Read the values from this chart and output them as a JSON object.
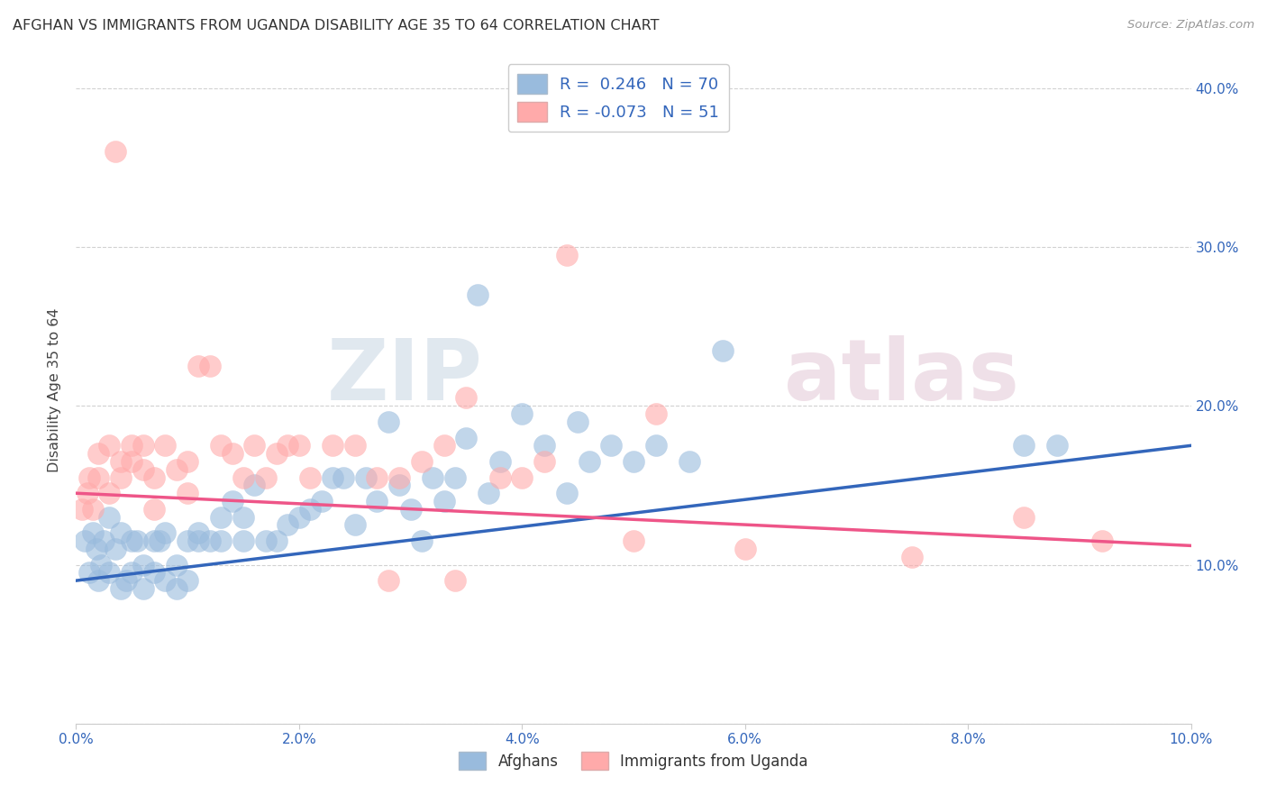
{
  "title": "AFGHAN VS IMMIGRANTS FROM UGANDA DISABILITY AGE 35 TO 64 CORRELATION CHART",
  "source": "Source: ZipAtlas.com",
  "ylabel": "Disability Age 35 to 64",
  "xlim": [
    0.0,
    0.1
  ],
  "ylim": [
    0.0,
    0.42
  ],
  "xticks": [
    0.0,
    0.02,
    0.04,
    0.06,
    0.08,
    0.1
  ],
  "yticks": [
    0.0,
    0.1,
    0.2,
    0.3,
    0.4
  ],
  "xtick_labels": [
    "0.0%",
    "2.0%",
    "4.0%",
    "6.0%",
    "8.0%",
    "10.0%"
  ],
  "ytick_labels_right": [
    "",
    "10.0%",
    "20.0%",
    "30.0%",
    "40.0%"
  ],
  "watermark_zip": "ZIP",
  "watermark_atlas": "atlas",
  "legend_line1": "R =  0.246   N = 70",
  "legend_line2": "R = -0.073   N = 51",
  "blue_color": "#99BBDD",
  "pink_color": "#FFAAAA",
  "trend_blue": "#3366BB",
  "trend_pink": "#EE5588",
  "blue_scatter_x": [
    0.0008,
    0.0012,
    0.0015,
    0.0018,
    0.002,
    0.0022,
    0.0025,
    0.003,
    0.003,
    0.0035,
    0.004,
    0.004,
    0.0045,
    0.005,
    0.005,
    0.0055,
    0.006,
    0.006,
    0.007,
    0.007,
    0.0075,
    0.008,
    0.008,
    0.009,
    0.009,
    0.01,
    0.01,
    0.011,
    0.011,
    0.012,
    0.013,
    0.013,
    0.014,
    0.015,
    0.015,
    0.016,
    0.017,
    0.018,
    0.019,
    0.02,
    0.021,
    0.022,
    0.023,
    0.024,
    0.025,
    0.026,
    0.027,
    0.028,
    0.029,
    0.03,
    0.032,
    0.034,
    0.035,
    0.037,
    0.038,
    0.04,
    0.042,
    0.044,
    0.046,
    0.048,
    0.05,
    0.052,
    0.055,
    0.058,
    0.085,
    0.088,
    0.036,
    0.031,
    0.033,
    0.045
  ],
  "blue_scatter_y": [
    0.115,
    0.095,
    0.12,
    0.11,
    0.09,
    0.1,
    0.115,
    0.095,
    0.13,
    0.11,
    0.12,
    0.085,
    0.09,
    0.115,
    0.095,
    0.115,
    0.1,
    0.085,
    0.115,
    0.095,
    0.115,
    0.12,
    0.09,
    0.1,
    0.085,
    0.115,
    0.09,
    0.115,
    0.12,
    0.115,
    0.13,
    0.115,
    0.14,
    0.115,
    0.13,
    0.15,
    0.115,
    0.115,
    0.125,
    0.13,
    0.135,
    0.14,
    0.155,
    0.155,
    0.125,
    0.155,
    0.14,
    0.19,
    0.15,
    0.135,
    0.155,
    0.155,
    0.18,
    0.145,
    0.165,
    0.195,
    0.175,
    0.145,
    0.165,
    0.175,
    0.165,
    0.175,
    0.165,
    0.235,
    0.175,
    0.175,
    0.27,
    0.115,
    0.14,
    0.19
  ],
  "pink_scatter_x": [
    0.0005,
    0.001,
    0.0012,
    0.0015,
    0.002,
    0.002,
    0.003,
    0.003,
    0.004,
    0.004,
    0.005,
    0.005,
    0.006,
    0.006,
    0.007,
    0.007,
    0.008,
    0.009,
    0.01,
    0.01,
    0.011,
    0.012,
    0.013,
    0.014,
    0.015,
    0.016,
    0.017,
    0.018,
    0.019,
    0.02,
    0.021,
    0.023,
    0.025,
    0.027,
    0.029,
    0.031,
    0.033,
    0.035,
    0.04,
    0.042,
    0.044,
    0.05,
    0.052,
    0.06,
    0.075,
    0.085,
    0.092,
    0.0035,
    0.028,
    0.034,
    0.038
  ],
  "pink_scatter_y": [
    0.135,
    0.145,
    0.155,
    0.135,
    0.17,
    0.155,
    0.145,
    0.175,
    0.165,
    0.155,
    0.175,
    0.165,
    0.175,
    0.16,
    0.155,
    0.135,
    0.175,
    0.16,
    0.165,
    0.145,
    0.225,
    0.225,
    0.175,
    0.17,
    0.155,
    0.175,
    0.155,
    0.17,
    0.175,
    0.175,
    0.155,
    0.175,
    0.175,
    0.155,
    0.155,
    0.165,
    0.175,
    0.205,
    0.155,
    0.165,
    0.295,
    0.115,
    0.195,
    0.11,
    0.105,
    0.13,
    0.115,
    0.36,
    0.09,
    0.09,
    0.155
  ],
  "blue_trend_x": [
    0.0,
    0.1
  ],
  "blue_trend_y": [
    0.09,
    0.175
  ],
  "pink_trend_x": [
    0.0,
    0.1
  ],
  "pink_trend_y": [
    0.145,
    0.112
  ],
  "bg_color": "#FFFFFF",
  "grid_color": "#CCCCCC",
  "tick_color": "#3366BB",
  "axis_color": "#CCCCCC"
}
